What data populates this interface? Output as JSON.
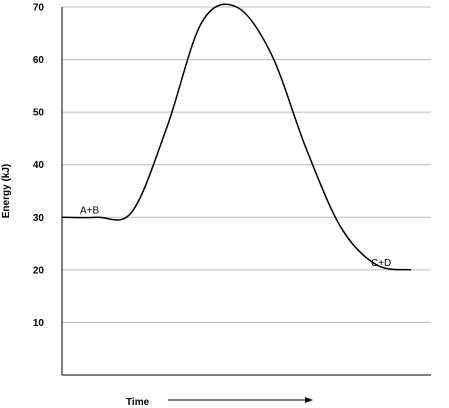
{
  "chart_data": {
    "type": "line",
    "xlabel": "Time",
    "ylabel": "Energy (kJ)",
    "ylim": [
      0,
      70
    ],
    "yticks": [
      10,
      20,
      30,
      40,
      50,
      60,
      70
    ],
    "grid": true,
    "x": [
      0,
      1,
      2,
      3,
      4,
      5,
      6,
      7,
      8,
      9,
      10
    ],
    "values": [
      30,
      30,
      31,
      47,
      67,
      70,
      61,
      43,
      28,
      21,
      20
    ],
    "annotations": [
      {
        "text": "A+B"
      },
      {
        "text": "C+D"
      }
    ],
    "colors": {
      "line": "#000000",
      "grid": "#bbbbbb",
      "axis": "#000000"
    }
  }
}
